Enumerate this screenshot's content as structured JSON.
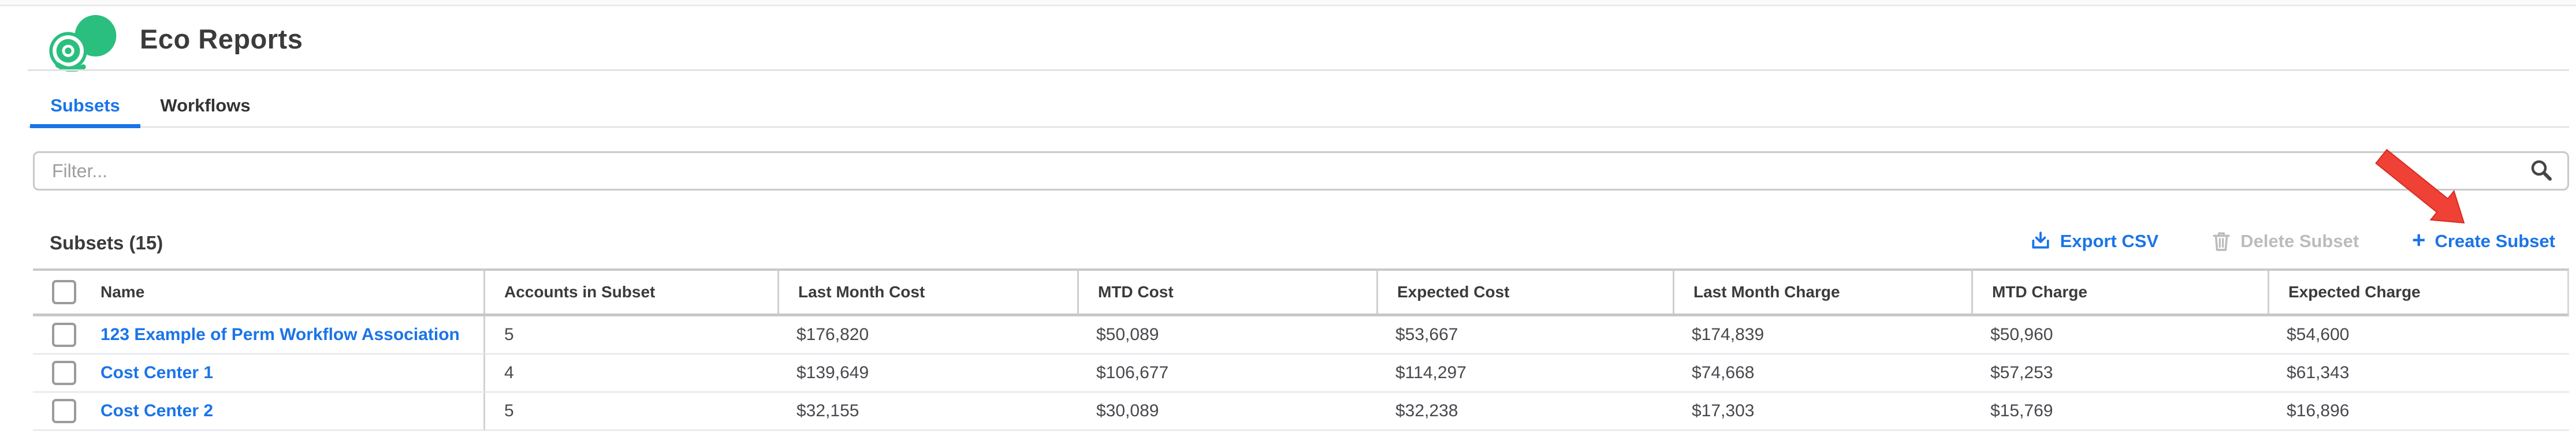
{
  "app": {
    "title": "Eco Reports"
  },
  "tabs": [
    {
      "label": "Subsets",
      "active": true
    },
    {
      "label": "Workflows",
      "active": false
    }
  ],
  "filter": {
    "placeholder": "Filter...",
    "value": ""
  },
  "section": {
    "title": "Subsets (15)"
  },
  "actions": {
    "export_csv": "Export CSV",
    "delete_subset": "Delete Subset",
    "create_subset": "Create Subset",
    "plus": "+"
  },
  "table": {
    "columns": [
      "Name",
      "Accounts in Subset",
      "Last Month Cost",
      "MTD Cost",
      "Expected Cost",
      "Last Month Charge",
      "MTD Charge",
      "Expected Charge"
    ],
    "rows": [
      {
        "cells": [
          "123 Example of Perm Workflow Association",
          "5",
          "$176,820",
          "$50,089",
          "$53,667",
          "$174,839",
          "$50,960",
          "$54,600"
        ]
      },
      {
        "cells": [
          "Cost Center 1",
          "4",
          "$139,649",
          "$106,677",
          "$114,297",
          "$74,668",
          "$57,253",
          "$61,343"
        ]
      },
      {
        "cells": [
          "Cost Center 2",
          "5",
          "$32,155",
          "$30,089",
          "$32,238",
          "$17,303",
          "$15,769",
          "$16,896"
        ]
      }
    ]
  },
  "icons": [
    "app-logo-icon",
    "search-icon",
    "download-icon",
    "trash-icon",
    "plus-icon",
    "red-arrow-annotation"
  ],
  "colors": {
    "accent": "#1a74e8",
    "logo-green": "#2abf7e",
    "arrow-red": "#ef4136",
    "disabled": "#bcbcbc"
  }
}
